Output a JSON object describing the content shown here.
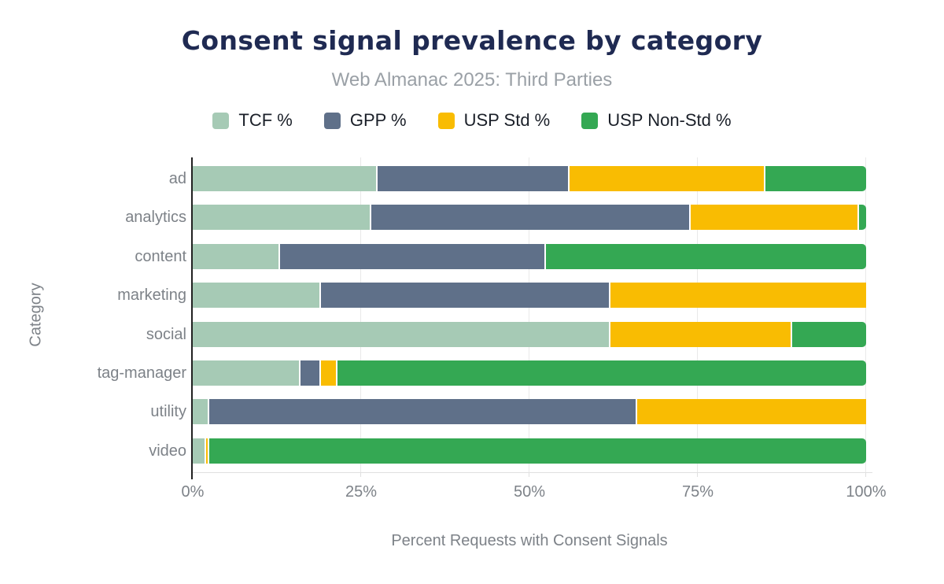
{
  "chart_data": {
    "type": "bar",
    "orientation": "horizontal",
    "stacked": true,
    "title": "Consent signal prevalence by category",
    "subtitle": "Web Almanac 2025: Third Parties",
    "xlabel": "Percent Requests with Consent Signals",
    "ylabel": "Category",
    "xlim": [
      0,
      100
    ],
    "xtick_values": [
      0,
      25,
      50,
      75,
      100
    ],
    "xtick_labels": [
      "0%",
      "25%",
      "50%",
      "75%",
      "100%"
    ],
    "gridline_values": [
      25,
      50,
      75,
      100
    ],
    "legend_position": "top",
    "grid": "vertical",
    "categories": [
      "ad",
      "analytics",
      "content",
      "marketing",
      "social",
      "tag-manager",
      "utility",
      "video"
    ],
    "series": [
      {
        "name": "TCF %",
        "color": "#a6cab5",
        "values": [
          27.5,
          26.5,
          13.0,
          19.0,
          62.0,
          16.0,
          2.5,
          2.0
        ]
      },
      {
        "name": "GPP %",
        "color": "#5f7089",
        "values": [
          28.5,
          47.5,
          39.5,
          43.0,
          0.0,
          3.0,
          63.5,
          0.0
        ]
      },
      {
        "name": "USP Std %",
        "color": "#f9bc02",
        "values": [
          29.0,
          25.0,
          0.0,
          38.0,
          27.0,
          2.5,
          34.0,
          0.5
        ]
      },
      {
        "name": "USP Non-Std %",
        "color": "#34a853",
        "values": [
          15.0,
          1.0,
          47.5,
          0.0,
          11.0,
          78.5,
          0.0,
          97.5
        ]
      }
    ]
  },
  "colors": {
    "title": "#1f2a52",
    "subtitle": "#9aa0a6",
    "axis_text": "#7d8288",
    "legend_text": "#1a1f28",
    "gridline": "#e9e9e9",
    "baseline": "#e0e0e0",
    "axis_line": "#212121",
    "background": "#ffffff",
    "segment_gap": "#ffffff"
  }
}
